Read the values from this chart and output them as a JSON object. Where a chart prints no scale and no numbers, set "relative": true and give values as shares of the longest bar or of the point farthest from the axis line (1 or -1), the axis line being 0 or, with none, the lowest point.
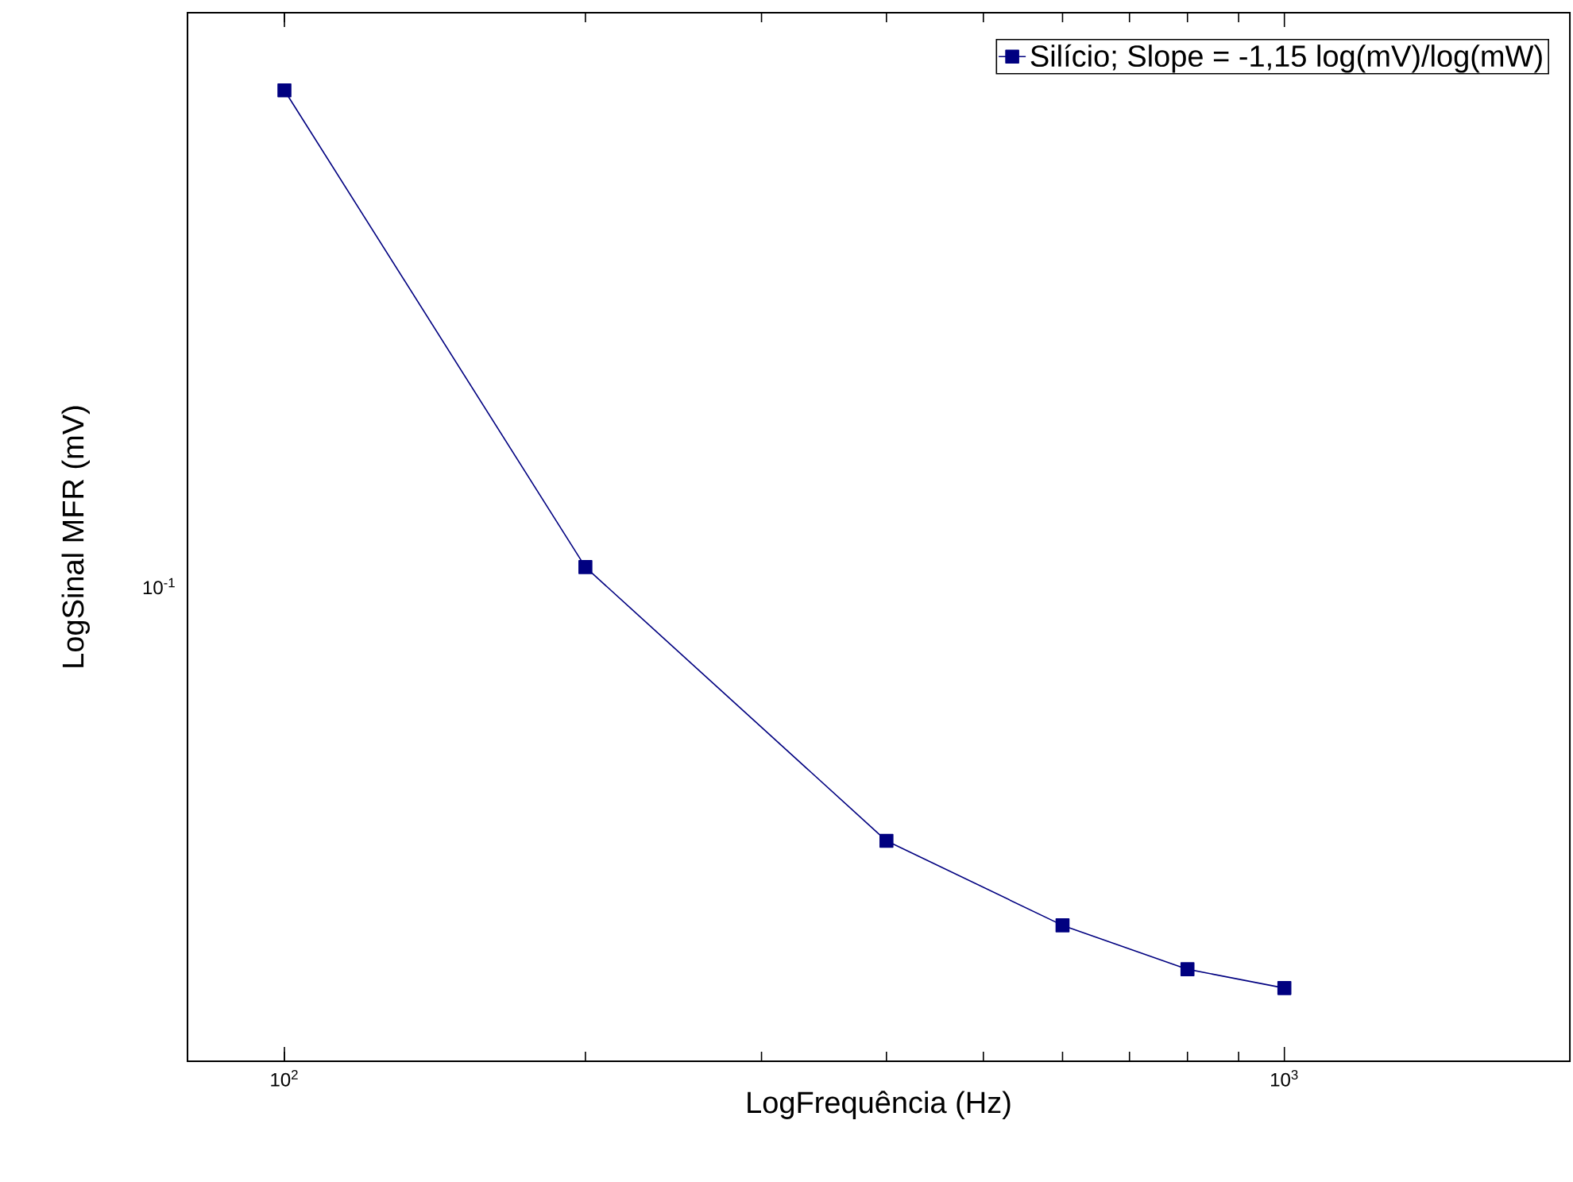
{
  "chart_data": {
    "type": "line",
    "xlabel": "LogFrequência (Hz)",
    "ylabel": "LogSinal MFR (mV)",
    "log": "x",
    "relative": true,
    "annotations": [
      "10$^{-1}$"
    ],
    "xlim": [
      80,
      1930
    ],
    "xticks": [
      {
        "value": 100,
        "label": "10$^{2}$"
      },
      {
        "value": 1000,
        "label": "10$^{3}$"
      }
    ],
    "x": [
      100,
      200,
      400,
      600,
      800,
      1000
    ],
    "series": [
      {
        "name": "Silício; Slope = -1,15 log(mV)/log(mW)",
        "color": "#000080",
        "values": [
          1,
          0.509,
          0.227,
          0.14,
          0.0948,
          0.0754
        ]
      }
    ],
    "marker": "square",
    "line_style": "solid",
    "legend": "top right",
    "grid": false
  }
}
